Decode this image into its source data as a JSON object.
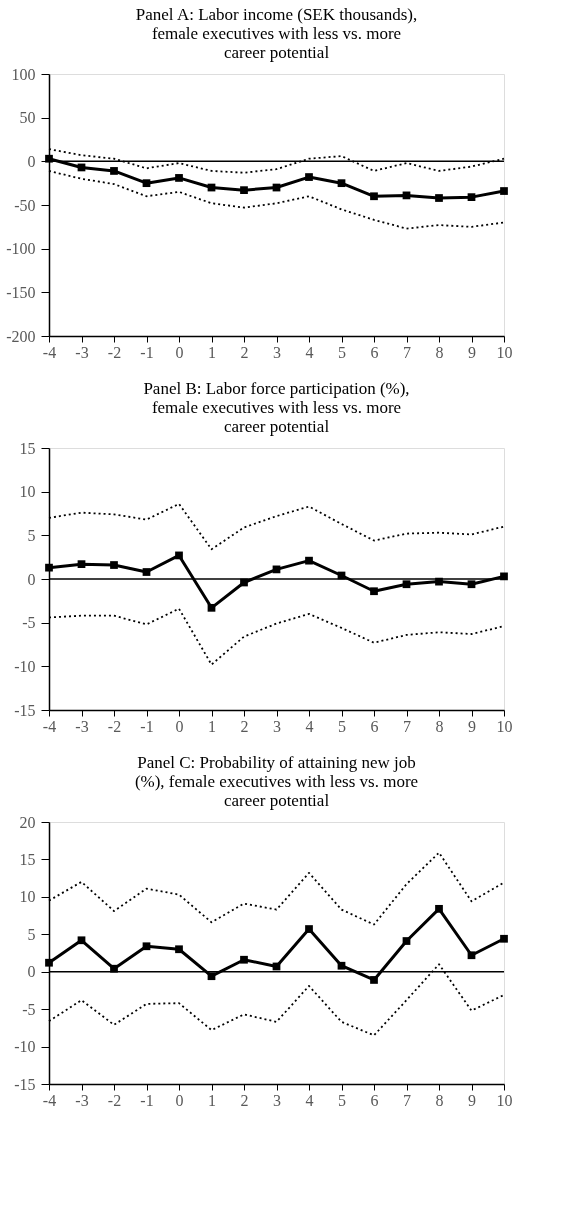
{
  "chart_data": [
    {
      "type": "line",
      "title": "Panel A: Labor income (SEK thousands), female executives with less vs. more career potential",
      "x": [
        -4,
        -3,
        -2,
        -1,
        0,
        1,
        2,
        3,
        4,
        5,
        6,
        7,
        8,
        9,
        10
      ],
      "xlim": [
        -4,
        10
      ],
      "xticks": [
        -4,
        -3,
        -2,
        -1,
        0,
        1,
        2,
        3,
        4,
        5,
        6,
        7,
        8,
        9,
        10
      ],
      "ylim": [
        -200,
        100
      ],
      "yticks": [
        -200,
        -150,
        -100,
        -50,
        0,
        50,
        100
      ],
      "grid": false,
      "ref_lines": [
        {
          "axis": "y",
          "value": 0,
          "color": "#000000",
          "line_style": "solid"
        }
      ],
      "series": [
        {
          "color": "#000000",
          "line_style": "solid",
          "marker": "square",
          "values": [
            3,
            -7,
            -11,
            -25,
            -19,
            -30,
            -33,
            -30,
            -18,
            -25,
            -40,
            -39,
            -42,
            -41,
            -34
          ]
        },
        {
          "color": "#000000",
          "line_style": "dotted",
          "marker": "none",
          "values": [
            14,
            7,
            3,
            -8,
            -2,
            -11,
            -13,
            -9,
            3,
            6,
            -11,
            -2,
            -11,
            -6,
            3
          ]
        },
        {
          "color": "#000000",
          "line_style": "dotted",
          "marker": "none",
          "values": [
            -11,
            -20,
            -26,
            -40,
            -35,
            -48,
            -53,
            -48,
            -40,
            -55,
            -67,
            -77,
            -73,
            -75,
            -70
          ]
        }
      ]
    },
    {
      "type": "line",
      "title": "Panel B: Labor force participation (%), female executives with less vs. more career potential",
      "x": [
        -4,
        -3,
        -2,
        -1,
        0,
        1,
        2,
        3,
        4,
        5,
        6,
        7,
        8,
        9,
        10
      ],
      "xlim": [
        -4,
        10
      ],
      "xticks": [
        -4,
        -3,
        -2,
        -1,
        0,
        1,
        2,
        3,
        4,
        5,
        6,
        7,
        8,
        9,
        10
      ],
      "ylim": [
        -15,
        15
      ],
      "yticks": [
        -15,
        -10,
        -5,
        0,
        5,
        10,
        15
      ],
      "grid": false,
      "ref_lines": [
        {
          "axis": "y",
          "value": 0,
          "color": "#000000",
          "line_style": "solid"
        }
      ],
      "series": [
        {
          "color": "#000000",
          "line_style": "solid",
          "marker": "square",
          "values": [
            1.3,
            1.7,
            1.6,
            0.8,
            2.7,
            -3.3,
            -0.4,
            1.1,
            2.1,
            0.4,
            -1.4,
            -0.6,
            -0.3,
            -0.6,
            0.3
          ]
        },
        {
          "color": "#000000",
          "line_style": "dotted",
          "marker": "none",
          "values": [
            7.0,
            7.6,
            7.4,
            6.8,
            8.6,
            3.4,
            5.9,
            7.2,
            8.3,
            6.3,
            4.4,
            5.2,
            5.3,
            5.1,
            6.0
          ]
        },
        {
          "color": "#000000",
          "line_style": "dotted",
          "marker": "none",
          "values": [
            -4.4,
            -4.2,
            -4.2,
            -5.2,
            -3.4,
            -9.8,
            -6.6,
            -5.1,
            -4.0,
            -5.6,
            -7.3,
            -6.4,
            -6.1,
            -6.3,
            -5.4
          ]
        }
      ]
    },
    {
      "type": "line",
      "title": "Panel C: Probability of attaining new job (%), female executives with less vs. more career potential",
      "x": [
        -4,
        -3,
        -2,
        -1,
        0,
        1,
        2,
        3,
        4,
        5,
        6,
        7,
        8,
        9,
        10
      ],
      "xlim": [
        -4,
        10
      ],
      "xticks": [
        -4,
        -3,
        -2,
        -1,
        0,
        1,
        2,
        3,
        4,
        5,
        6,
        7,
        8,
        9,
        10
      ],
      "ylim": [
        -15,
        20
      ],
      "yticks": [
        -15,
        -10,
        -5,
        0,
        5,
        10,
        15,
        20
      ],
      "grid": false,
      "ref_lines": [
        {
          "axis": "y",
          "value": 0,
          "color": "#000000",
          "line_style": "solid"
        }
      ],
      "series": [
        {
          "color": "#000000",
          "line_style": "solid",
          "marker": "square",
          "values": [
            1.2,
            4.2,
            0.4,
            3.4,
            3.0,
            -0.6,
            1.6,
            0.7,
            5.7,
            0.8,
            -1.1,
            4.1,
            8.4,
            2.2,
            4.4
          ]
        },
        {
          "color": "#000000",
          "line_style": "dotted",
          "marker": "none",
          "values": [
            9.5,
            12.0,
            8.1,
            11.1,
            10.3,
            6.6,
            9.1,
            8.3,
            13.2,
            8.3,
            6.3,
            11.7,
            15.9,
            9.4,
            11.9
          ]
        },
        {
          "color": "#000000",
          "line_style": "dotted",
          "marker": "none",
          "values": [
            -6.6,
            -3.8,
            -7.1,
            -4.3,
            -4.2,
            -7.8,
            -5.7,
            -6.7,
            -1.9,
            -6.7,
            -8.5,
            -3.8,
            1.0,
            -5.2,
            -3.1
          ]
        }
      ]
    }
  ]
}
